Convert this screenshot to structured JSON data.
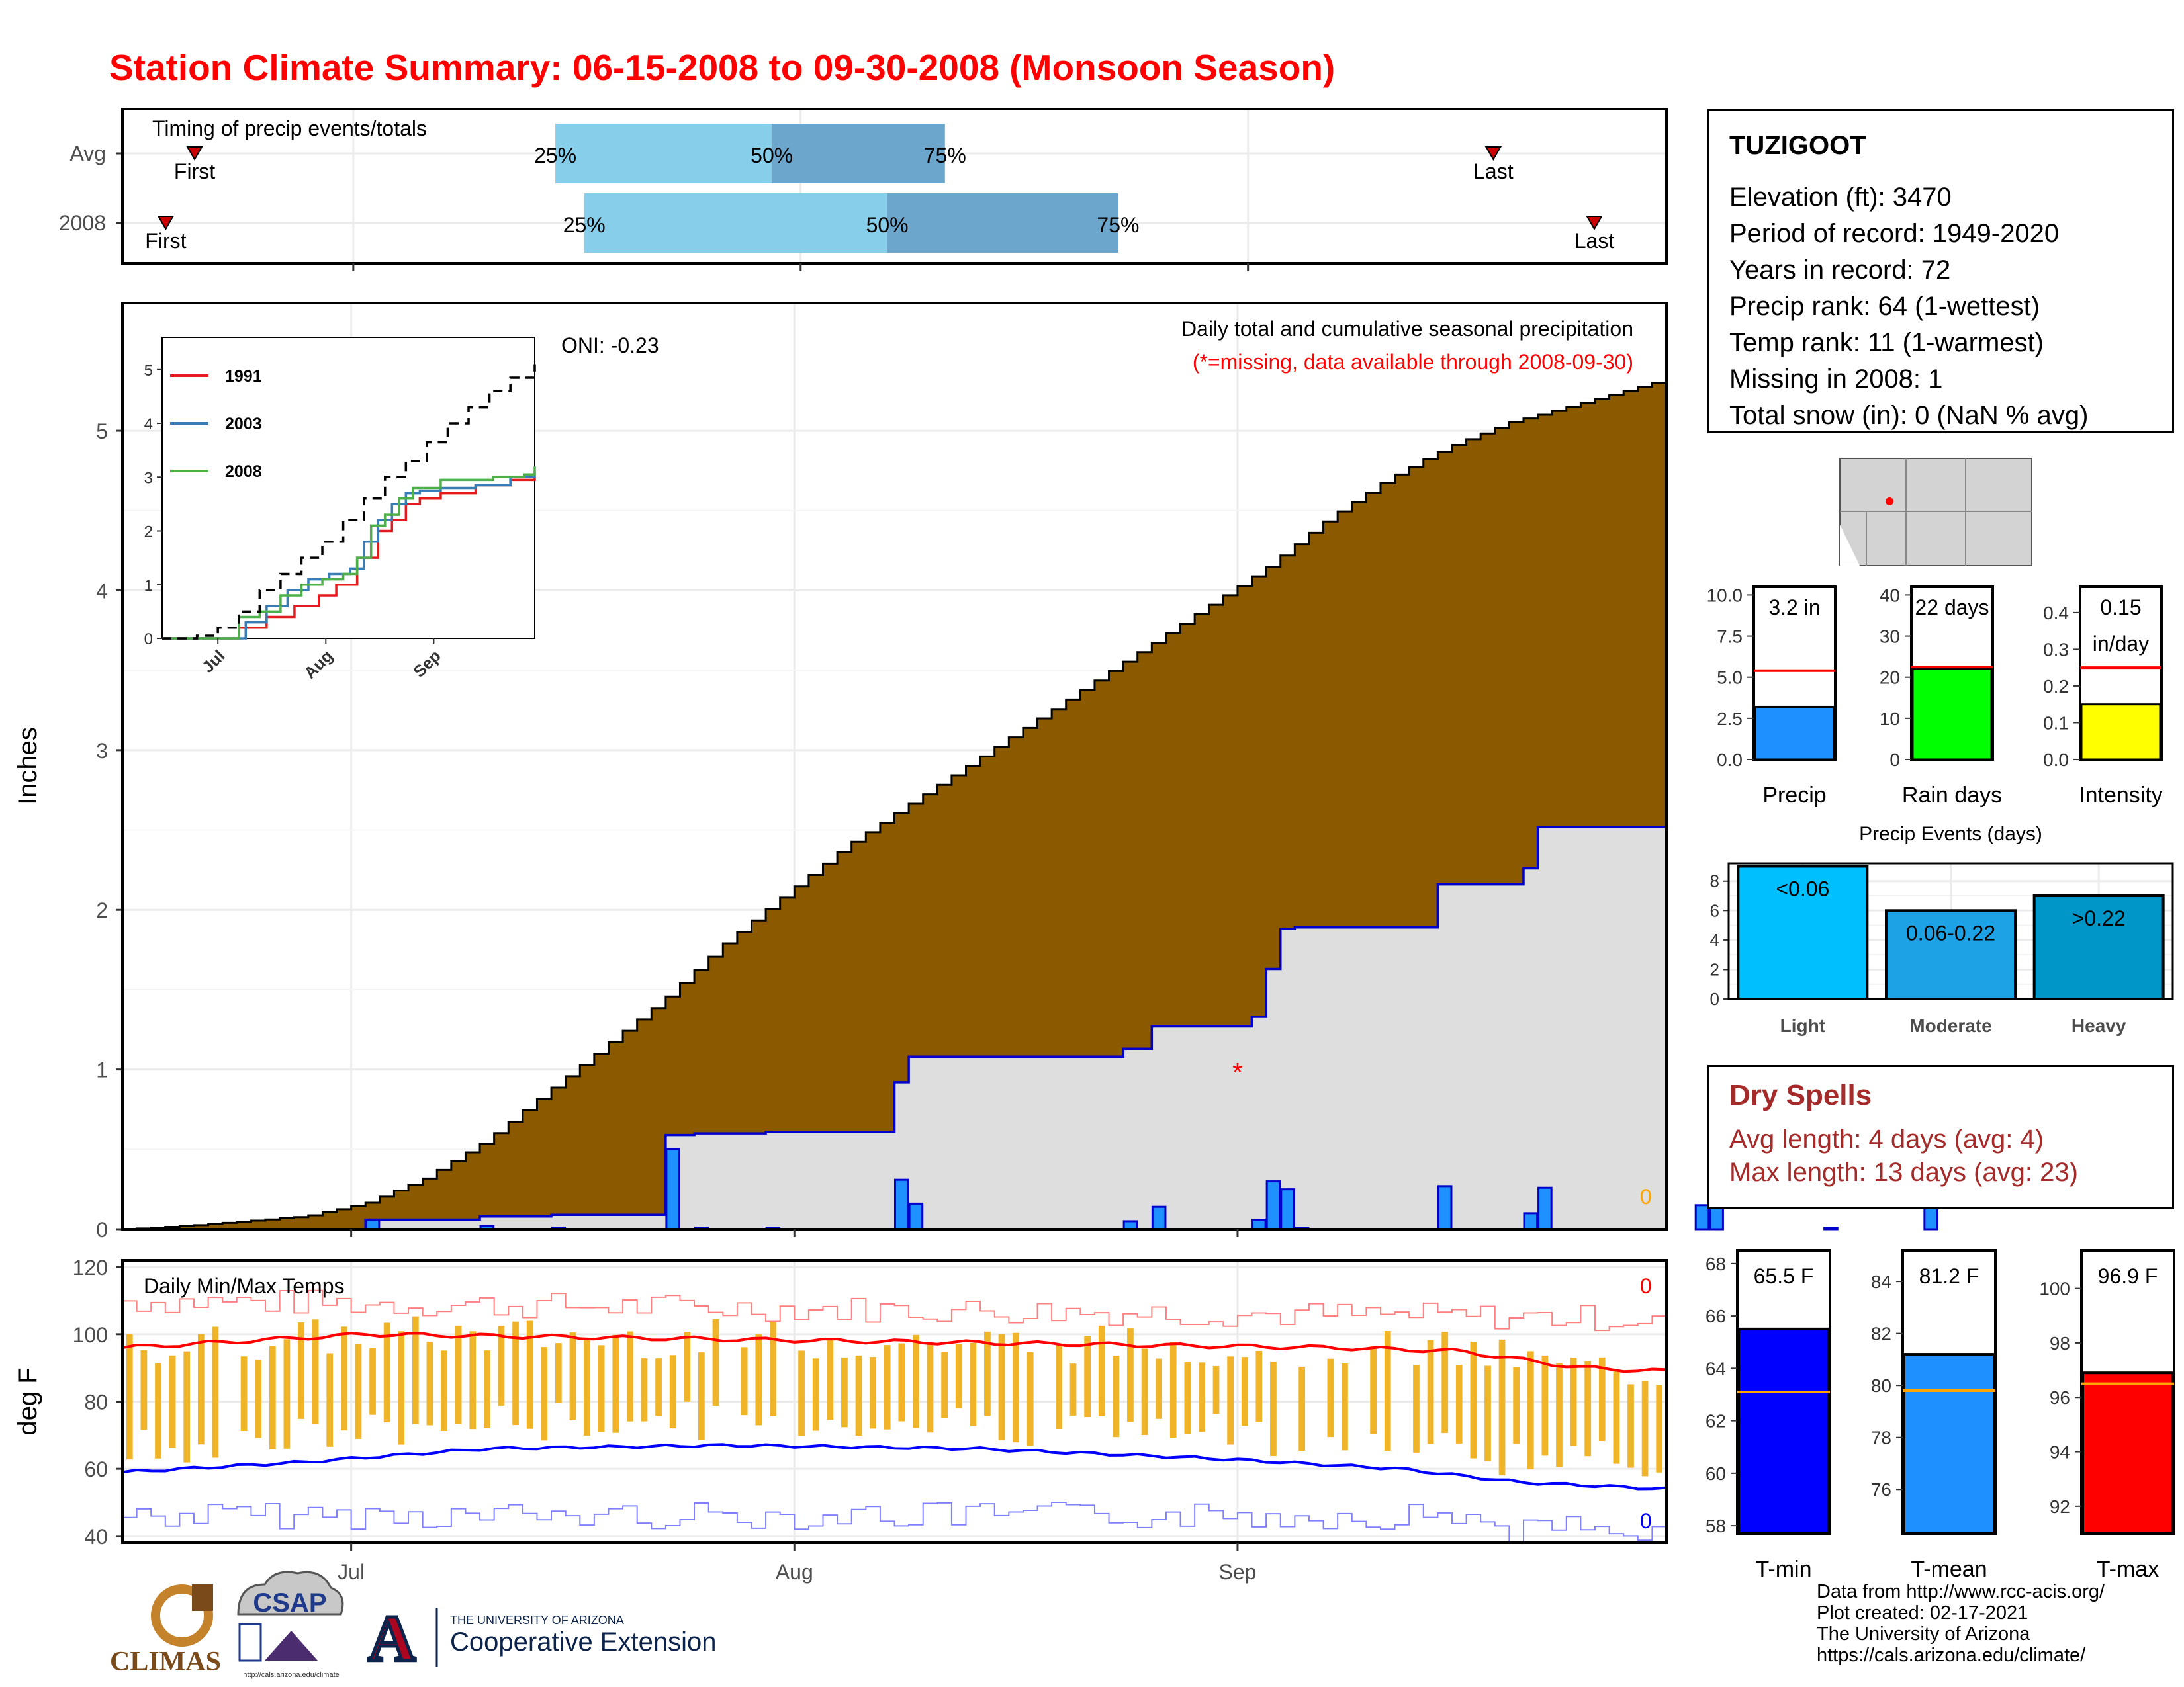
{
  "title": "Station Climate Summary: 06-15-2008 to 09-30-2008 (Monsoon Season)",
  "timing": {
    "title": "Timing of precip events/totals",
    "rows": [
      {
        "label": "Avg",
        "first": "06-20",
        "q25": "07-15",
        "q50": "07-30",
        "q75": "08-11",
        "last": "09-18"
      },
      {
        "label": "2008",
        "first": "06-18",
        "q25": "07-17",
        "q50": "08-07",
        "q75": "08-23",
        "last": "09-25"
      }
    ],
    "first_label": "First",
    "last_label": "Last",
    "p25": "25%",
    "p50": "50%",
    "p75": "75%"
  },
  "main_panel": {
    "subtitle": "Daily total and cumulative seasonal precipitation",
    "missing_note": "(*=missing, data available through 2008-09-30)",
    "oni": "ONI: -0.23",
    "ylabel": "Inches",
    "missing_count_label": "0",
    "missing_marker": "*"
  },
  "inset": {
    "series": [
      {
        "name": "1991",
        "color": "#e41a1c"
      },
      {
        "name": "2003",
        "color": "#377eb8"
      },
      {
        "name": "2008",
        "color": "#4daf4a"
      }
    ]
  },
  "temp_panel": {
    "title": "Daily Min/Max Temps",
    "ylabel": "deg F",
    "max_missing": "0",
    "min_missing": "0"
  },
  "station": {
    "name": "TUZIGOOT",
    "lines": [
      "Elevation (ft): 3470",
      "Period of record: 1949-2020",
      "Years in record: 72",
      "Precip rank: 64 (1-wettest)",
      "Temp rank: 11 (1-warmest)",
      "Missing in 2008: 1",
      "Total snow (in): 0 (NaN % avg)"
    ]
  },
  "gauges": [
    {
      "label": "Precip",
      "value_text": "3.2 in",
      "ticks": [
        "10.0",
        "7.5",
        "5.0",
        "2.5",
        "0.0"
      ],
      "color": "#1e90ff"
    },
    {
      "label": "Rain days",
      "value_text": "22 days",
      "ticks": [
        "40",
        "30",
        "20",
        "10",
        "0"
      ],
      "color": "#00ff00"
    },
    {
      "label": "Intensity",
      "value_text": "0.15",
      "value_text2": "in/day",
      "ticks": [
        "0.4",
        "0.3",
        "0.2",
        "0.1",
        "0.0"
      ],
      "color": "#ffff00"
    }
  ],
  "events": {
    "title": "Precip Events (days)",
    "bars": [
      {
        "label": "Light",
        "text": "<0.06",
        "color": "#00bfff"
      },
      {
        "label": "Moderate",
        "text": "0.06-0.22",
        "color": "#1ea2e6"
      },
      {
        "label": "Heavy",
        "text": ">0.22",
        "color": "#0096c7"
      }
    ],
    "ticks": [
      "8",
      "6",
      "4",
      "2",
      "0"
    ]
  },
  "dry_spells": {
    "title": "Dry Spells",
    "avg": "Avg length: 4 days (avg: 4)",
    "max": "Max length: 13 days (avg: 23)"
  },
  "temp_gauges": [
    {
      "label": "T-min",
      "value_text": "65.5 F",
      "ticks": [
        "68",
        "66",
        "64",
        "62",
        "60",
        "58"
      ],
      "color": "#0000ff"
    },
    {
      "label": "T-mean",
      "value_text": "81.2 F",
      "ticks": [
        "84",
        "82",
        "80",
        "78",
        "76"
      ],
      "color": "#1e90ff"
    },
    {
      "label": "T-max",
      "value_text": "96.9 F",
      "ticks": [
        "100",
        "98",
        "96",
        "94",
        "92"
      ],
      "color": "#ff0000"
    }
  ],
  "credits": [
    "Data from http://www.rcc-acis.org/",
    "Plot created: 02-17-2021",
    "The University of Arizona",
    "https://cals.arizona.edu/climate/"
  ],
  "logos": {
    "climas": "CLIMAS",
    "csap": "CSAP",
    "csap_url": "http://cals.arizona.edu/climate",
    "ua_line1": "THE UNIVERSITY OF ARIZONA",
    "ua_line2": "Cooperative Extension",
    "ua_letter": "A"
  },
  "chart_data": [
    {
      "type": "bar",
      "name": "timing",
      "x_range": [
        "06-15",
        "09-30"
      ],
      "categories": [
        "Avg",
        "2008"
      ]
    },
    {
      "type": "area",
      "name": "daily-and-cumulative-precip",
      "xlabel": "",
      "ylabel": "Inches",
      "ylim": [
        0,
        5.8
      ],
      "x_range": [
        "06-15",
        "09-30"
      ],
      "x_ticks": [
        "Jul",
        "Aug",
        "Sep"
      ],
      "y_ticks": [
        0,
        1,
        2,
        3,
        4,
        5
      ],
      "avg_cumulative_anchors": [
        [
          0,
          0
        ],
        [
          5,
          0.02
        ],
        [
          10,
          0.05
        ],
        [
          15,
          0.08
        ],
        [
          20,
          0.16
        ],
        [
          25,
          0.32
        ],
        [
          30,
          0.55
        ],
        [
          35,
          0.85
        ],
        [
          40,
          1.15
        ],
        [
          45,
          1.45
        ],
        [
          50,
          1.8
        ],
        [
          55,
          2.1
        ],
        [
          60,
          2.4
        ],
        [
          65,
          2.65
        ],
        [
          70,
          2.9
        ],
        [
          75,
          3.15
        ],
        [
          80,
          3.4
        ],
        [
          85,
          3.65
        ],
        [
          90,
          3.9
        ],
        [
          95,
          4.15
        ],
        [
          100,
          4.45
        ],
        [
          105,
          4.7
        ],
        [
          110,
          4.9
        ],
        [
          115,
          5.05
        ],
        [
          120,
          5.15
        ],
        [
          127,
          5.3
        ]
      ],
      "daily_precip": [
        [
          0,
          0
        ],
        [
          2,
          0
        ],
        [
          17,
          0.06
        ],
        [
          25,
          0.02
        ],
        [
          30,
          0.01
        ],
        [
          38,
          0.5
        ],
        [
          40,
          0.01
        ],
        [
          45,
          0.01
        ],
        [
          54,
          0.31
        ],
        [
          55,
          0.16
        ],
        [
          70,
          0.05
        ],
        [
          72,
          0.14
        ],
        [
          79,
          0.06
        ],
        [
          80,
          0.3
        ],
        [
          81,
          0.25
        ],
        [
          82,
          0.01
        ],
        [
          92,
          0.27
        ],
        [
          98,
          0.1
        ],
        [
          99,
          0.26
        ],
        [
          110,
          0.15
        ],
        [
          111,
          0.15
        ],
        [
          119,
          0.01
        ],
        [
          126,
          0.26
        ]
      ]
    },
    {
      "type": "line",
      "name": "inset-cumulative",
      "ylim": [
        0,
        5
      ],
      "y_ticks": [
        0,
        1,
        2,
        3,
        4,
        5
      ],
      "x_ticks": [
        "Jul",
        "Aug",
        "Sep"
      ],
      "series": [
        {
          "name": "1991",
          "points": [
            [
              0,
              0
            ],
            [
              18,
              0
            ],
            [
              22,
              0.2
            ],
            [
              30,
              0.4
            ],
            [
              38,
              0.6
            ],
            [
              45,
              0.8
            ],
            [
              50,
              1.0
            ],
            [
              56,
              1.5
            ],
            [
              62,
              2.0
            ],
            [
              66,
              2.2
            ],
            [
              70,
              2.5
            ],
            [
              74,
              2.6
            ],
            [
              80,
              2.7
            ],
            [
              90,
              2.85
            ],
            [
              100,
              2.95
            ],
            [
              107,
              3.0
            ]
          ]
        },
        {
          "name": "2003",
          "points": [
            [
              0,
              0
            ],
            [
              20,
              0
            ],
            [
              24,
              0.3
            ],
            [
              30,
              0.6
            ],
            [
              36,
              0.9
            ],
            [
              42,
              1.1
            ],
            [
              48,
              1.2
            ],
            [
              54,
              1.3
            ],
            [
              58,
              1.8
            ],
            [
              62,
              2.2
            ],
            [
              66,
              2.5
            ],
            [
              70,
              2.7
            ],
            [
              74,
              2.75
            ],
            [
              80,
              2.8
            ],
            [
              90,
              2.85
            ],
            [
              100,
              3.0
            ],
            [
              107,
              3.1
            ]
          ]
        },
        {
          "name": "2008",
          "points": [
            [
              0,
              0
            ],
            [
              17,
              0
            ],
            [
              22,
              0.4
            ],
            [
              28,
              0.5
            ],
            [
              34,
              0.8
            ],
            [
              40,
              1.0
            ],
            [
              46,
              1.1
            ],
            [
              52,
              1.2
            ],
            [
              56,
              1.5
            ],
            [
              60,
              2.1
            ],
            [
              64,
              2.3
            ],
            [
              68,
              2.6
            ],
            [
              72,
              2.8
            ],
            [
              80,
              2.95
            ],
            [
              95,
              3.0
            ],
            [
              104,
              3.05
            ],
            [
              107,
              3.2
            ]
          ]
        },
        {
          "name": "avg",
          "points": [
            [
              0,
              0
            ],
            [
              10,
              0.05
            ],
            [
              16,
              0.2
            ],
            [
              22,
              0.5
            ],
            [
              28,
              0.9
            ],
            [
              34,
              1.2
            ],
            [
              40,
              1.5
            ],
            [
              46,
              1.8
            ],
            [
              52,
              2.2
            ],
            [
              58,
              2.6
            ],
            [
              64,
              3.0
            ],
            [
              70,
              3.3
            ],
            [
              76,
              3.65
            ],
            [
              82,
              4.0
            ],
            [
              88,
              4.3
            ],
            [
              94,
              4.6
            ],
            [
              100,
              4.85
            ],
            [
              107,
              5.1
            ]
          ]
        }
      ]
    },
    {
      "type": "bar",
      "name": "daily-temps",
      "ylabel": "deg F",
      "ylim": [
        38,
        122
      ],
      "y_ticks": [
        40,
        60,
        80,
        100,
        120
      ],
      "x_ticks": [
        "Jul",
        "Aug",
        "Sep"
      ],
      "avg_max_anchors": [
        [
          0,
          96
        ],
        [
          20,
          100
        ],
        [
          40,
          99
        ],
        [
          60,
          98
        ],
        [
          80,
          97
        ],
        [
          100,
          96
        ],
        [
          110,
          95
        ],
        [
          120,
          90
        ],
        [
          127,
          89
        ]
      ],
      "avg_min_anchors": [
        [
          0,
          59
        ],
        [
          15,
          62
        ],
        [
          30,
          66
        ],
        [
          50,
          67
        ],
        [
          70,
          66
        ],
        [
          90,
          63
        ],
        [
          105,
          60
        ],
        [
          115,
          56
        ],
        [
          127,
          54
        ]
      ],
      "record_max_level": 110,
      "record_min_level": 50
    },
    {
      "type": "bar",
      "name": "season-gauges",
      "categories": [
        "Precip",
        "Rain days",
        "Intensity"
      ],
      "values": [
        3.2,
        22,
        0.15
      ],
      "averages": [
        5.4,
        22.5,
        0.25
      ],
      "ylims": [
        [
          0,
          10.5
        ],
        [
          0,
          42
        ],
        [
          0,
          0.47
        ]
      ]
    },
    {
      "type": "bar",
      "name": "precip-events",
      "categories": [
        "Light",
        "Moderate",
        "Heavy"
      ],
      "values": [
        9,
        6,
        7
      ],
      "ylim": [
        0,
        9.2
      ]
    },
    {
      "type": "bar",
      "name": "temp-gauges",
      "categories": [
        "T-min",
        "T-mean",
        "T-max"
      ],
      "values": [
        65.5,
        81.2,
        96.9
      ],
      "averages": [
        63.1,
        79.8,
        96.5
      ],
      "ylims": [
        [
          57.7,
          68.5
        ],
        [
          74.3,
          85.2
        ],
        [
          91,
          101.4
        ]
      ]
    }
  ]
}
